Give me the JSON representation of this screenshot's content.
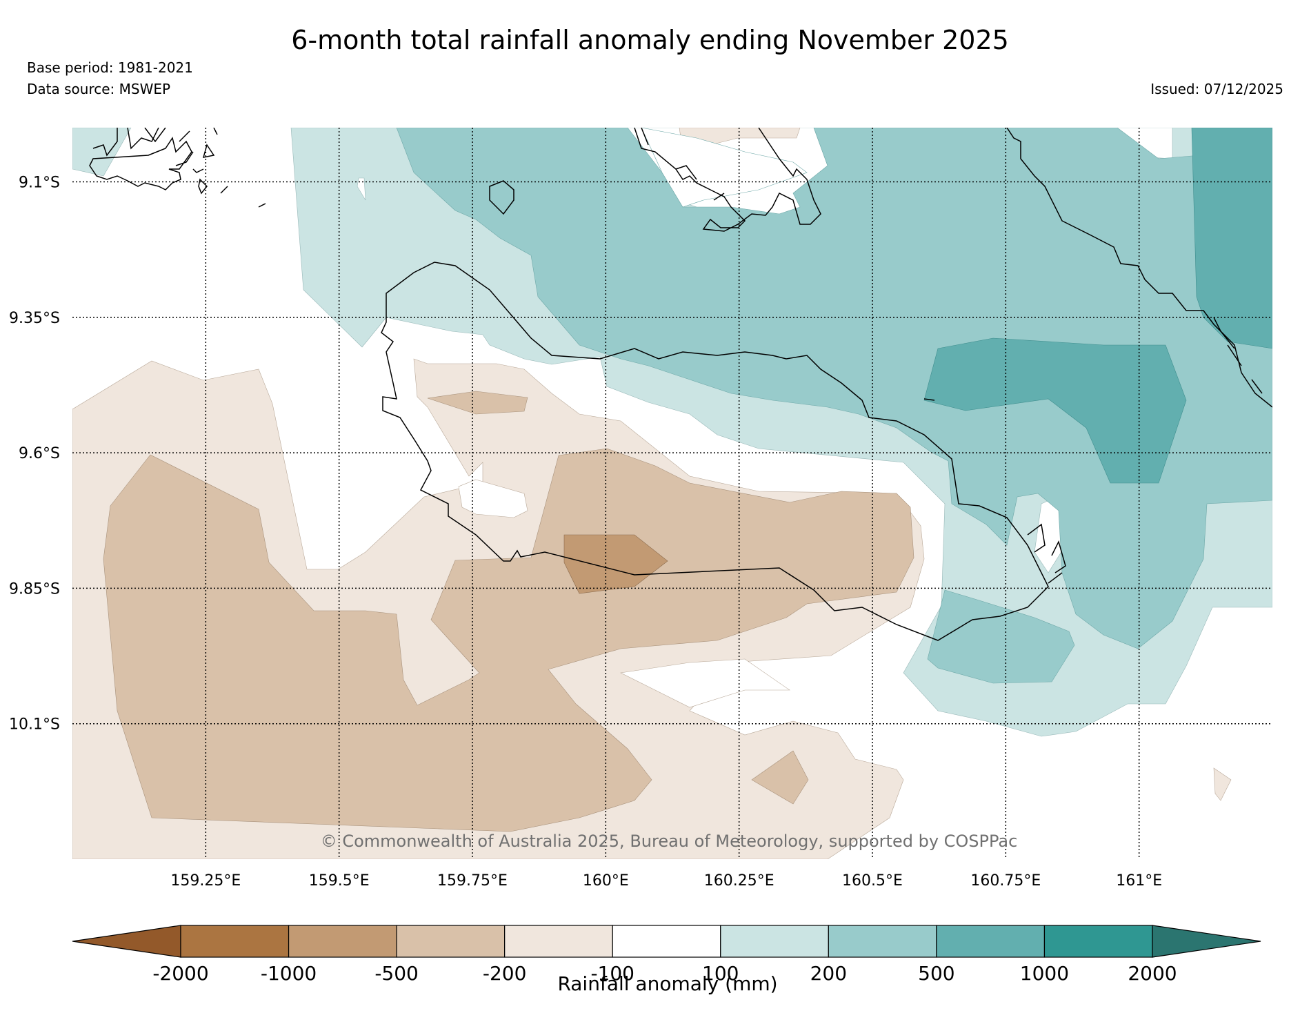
{
  "title": "6-month total rainfall anomaly ending November 2025",
  "meta": {
    "base_period": "Base period: 1981-2021",
    "data_source": "Data source: MSWEP",
    "issued": "Issued: 07/12/2025"
  },
  "copyright": "© Commonwealth of Australia 2025, Bureau of Meteorology, supported by COSPPac",
  "map": {
    "lon_range": [
      159.0,
      161.25
    ],
    "lat_range": [
      -10.35,
      -9.0
    ],
    "lon_ticks": [
      159.25,
      159.5,
      159.75,
      160.0,
      160.25,
      160.5,
      160.75,
      161.0
    ],
    "lon_tick_labels": [
      "159.25°E",
      "159.5°E",
      "159.75°E",
      "160°E",
      "160.25°E",
      "160.5°E",
      "160.75°E",
      "161°E"
    ],
    "lat_ticks": [
      -9.1,
      -9.35,
      -9.6,
      -9.85,
      -10.1
    ],
    "lat_tick_labels": [
      "9.1°S",
      "9.35°S",
      "9.6°S",
      "9.85°S",
      "10.1°S"
    ]
  },
  "colorbar": {
    "label": "Rainfall anomaly (mm)",
    "tick_labels": [
      "-2000",
      "-1000",
      "-500",
      "-200",
      "-100",
      "100",
      "200",
      "500",
      "1000",
      "2000"
    ],
    "colors": [
      "#93592a",
      "#ab7541",
      "#c29a73",
      "#d9c1a9",
      "#f0e6dd",
      "#ffffff",
      "#cbe4e3",
      "#98cbcb",
      "#62afaf",
      "#2f9792",
      "#2b7570"
    ]
  },
  "colors": {
    "land_dry_light": "#f0e6dd",
    "land_dry_mid": "#d9c1a9",
    "land_dry_strong": "#c29a73",
    "wet_light": "#cbe4e3",
    "wet_mid": "#98cbcb",
    "wet_strong": "#62afaf"
  }
}
